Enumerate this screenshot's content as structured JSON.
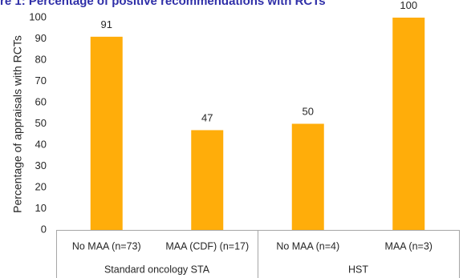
{
  "chart_data": {
    "type": "bar",
    "title": "re 1: Percentage of positive recommendations with RCTs",
    "ylabel": "Percentage of appraisals with RCTs",
    "xlabel": "",
    "ylim": [
      0,
      100
    ],
    "yticks": [
      0,
      10,
      20,
      30,
      40,
      50,
      60,
      70,
      80,
      90,
      100
    ],
    "grid": false,
    "bar_color": "#ffad0a",
    "categories": [
      "No MAA (n=73)",
      "MAA (CDF) (n=17)",
      "No MAA (n=4)",
      "MAA (n=3)"
    ],
    "groups": [
      {
        "name": "Standard oncology STA",
        "categories": [
          "No MAA (n=73)",
          "MAA (CDF) (n=17)"
        ]
      },
      {
        "name": "HST",
        "categories": [
          "No MAA (n=4)",
          "MAA (n=3)"
        ]
      }
    ],
    "values": [
      91,
      47,
      50,
      100
    ],
    "data_labels": [
      "91",
      "47",
      "50",
      "100"
    ]
  }
}
